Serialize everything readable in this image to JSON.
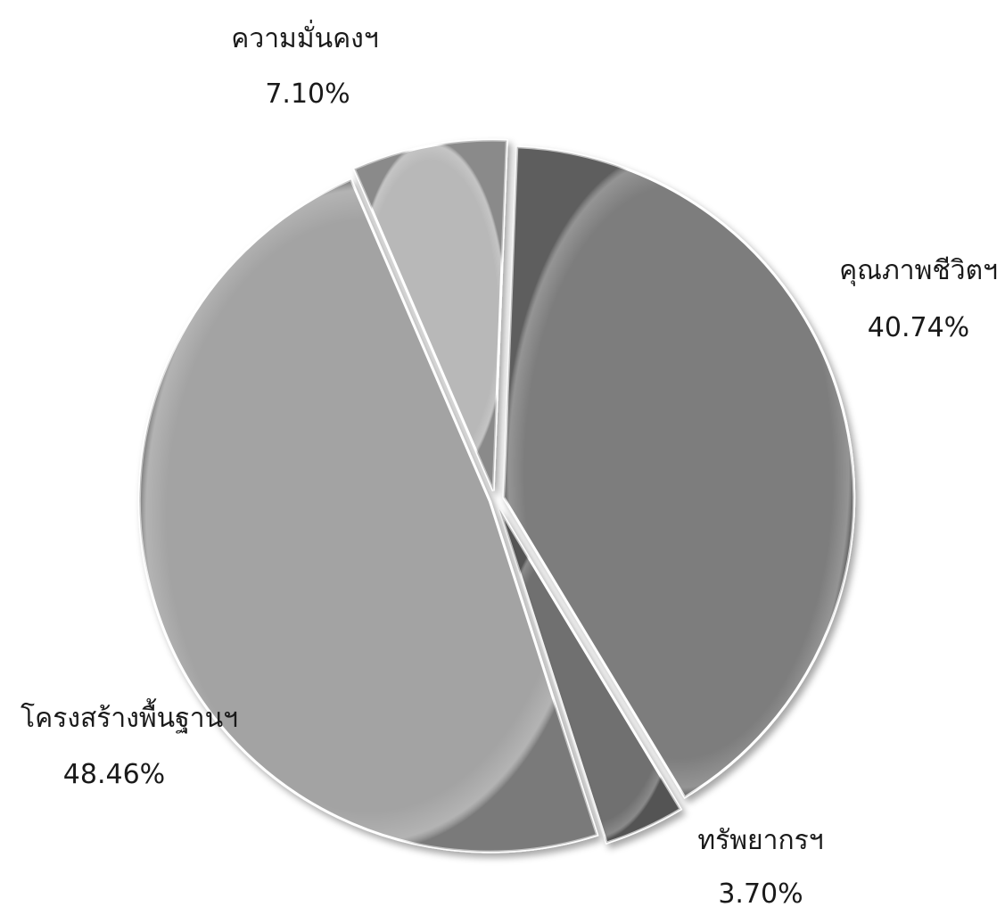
{
  "chart_data": {
    "type": "pie",
    "title": "",
    "legend": "none",
    "slices": [
      {
        "name": "คุณภาพชีวิตฯ",
        "value": 40.74,
        "value_label": "40.74%",
        "color": "#7d7d7d"
      },
      {
        "name": "ทรัพยากรฯ",
        "value": 3.7,
        "value_label": "3.70%",
        "color": "#707070"
      },
      {
        "name": "โครงสร้างพื้นฐานฯ",
        "value": 48.46,
        "value_label": "48.46%",
        "color": "#a3a3a3"
      },
      {
        "name": "ความมั่นคงฯ",
        "value": 7.1,
        "value_label": "7.10%",
        "color": "#b8b8b8"
      }
    ]
  }
}
